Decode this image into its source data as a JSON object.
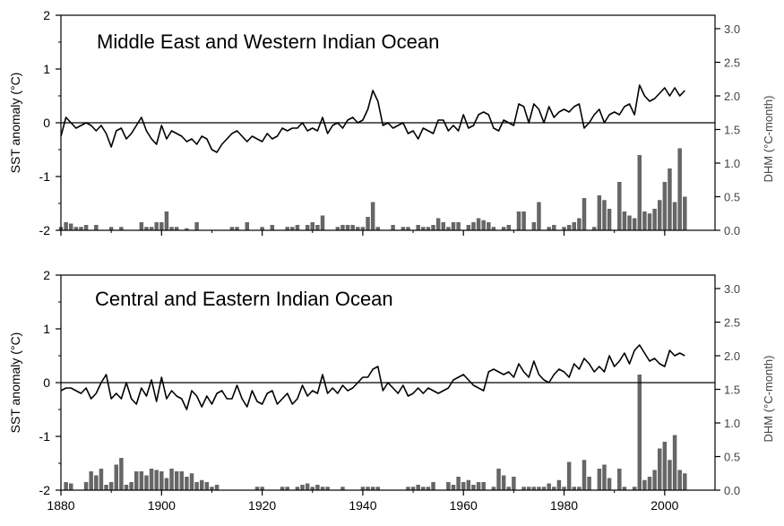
{
  "chart_data": [
    {
      "type": "bar+line",
      "title": "Middle East and Western Indian Ocean",
      "xlim": [
        1880,
        2010
      ],
      "x_ticks": [
        "1880",
        "1900",
        "1920",
        "1940",
        "1960",
        "1980",
        "2000"
      ],
      "ylabel_left": "SST anomaly (°C)",
      "ylim_left": [
        -2,
        2
      ],
      "y_ticks_left": [
        "-2",
        "-1",
        "0",
        "1",
        "2"
      ],
      "ylabel_right": "DHM (°C-month)",
      "ylim_right": [
        0.0,
        3.2
      ],
      "y_ticks_right": [
        "0.0",
        "0.5",
        "1.0",
        "1.5",
        "2.0",
        "2.5",
        "3.0"
      ],
      "zero_line": true,
      "grid": false,
      "colors": {
        "line": "#000000",
        "bars": "#666666",
        "axis": "#000000"
      },
      "series": [
        {
          "kind": "line",
          "axis": "left",
          "x_start": 1880,
          "x_step": 1,
          "values": [
            -0.25,
            0.1,
            0.0,
            -0.1,
            -0.05,
            0.0,
            -0.05,
            -0.15,
            -0.05,
            -0.2,
            -0.45,
            -0.15,
            -0.1,
            -0.3,
            -0.2,
            -0.05,
            0.1,
            -0.15,
            -0.3,
            -0.4,
            -0.05,
            -0.3,
            -0.15,
            -0.2,
            -0.25,
            -0.35,
            -0.3,
            -0.4,
            -0.25,
            -0.3,
            -0.5,
            -0.55,
            -0.4,
            -0.3,
            -0.2,
            -0.15,
            -0.25,
            -0.35,
            -0.25,
            -0.3,
            -0.35,
            -0.2,
            -0.3,
            -0.25,
            -0.1,
            -0.15,
            -0.1,
            -0.1,
            0.0,
            -0.15,
            -0.1,
            -0.15,
            0.1,
            -0.2,
            -0.05,
            0.0,
            -0.1,
            0.05,
            0.1,
            0.0,
            0.05,
            0.25,
            0.6,
            0.4,
            -0.05,
            0.0,
            -0.1,
            -0.05,
            0.0,
            -0.2,
            -0.15,
            -0.3,
            -0.1,
            -0.15,
            -0.2,
            0.05,
            0.05,
            -0.15,
            -0.05,
            -0.15,
            0.15,
            -0.1,
            -0.05,
            0.15,
            0.2,
            0.15,
            -0.1,
            -0.15,
            0.05,
            0.0,
            -0.05,
            0.35,
            0.3,
            0.0,
            0.35,
            0.25,
            0.0,
            0.3,
            0.1,
            0.2,
            0.25,
            0.2,
            0.3,
            0.35,
            -0.1,
            0.0,
            0.15,
            0.25,
            0.0,
            0.15,
            0.2,
            0.15,
            0.3,
            0.35,
            0.15,
            0.7,
            0.5,
            0.4,
            0.45,
            0.55,
            0.65,
            0.5,
            0.65,
            0.5,
            0.6
          ]
        },
        {
          "kind": "bar",
          "axis": "right",
          "x_start": 1880,
          "x_step": 1,
          "values": [
            0.05,
            0.12,
            0.1,
            0.05,
            0.05,
            0.08,
            0.0,
            0.08,
            0.0,
            0.0,
            0.05,
            0.0,
            0.05,
            0.0,
            0.0,
            0.0,
            0.12,
            0.05,
            0.05,
            0.12,
            0.12,
            0.28,
            0.05,
            0.05,
            0.0,
            0.03,
            0.0,
            0.12,
            0.0,
            0.0,
            0.0,
            0.0,
            0.0,
            0.0,
            0.05,
            0.05,
            0.0,
            0.12,
            0.0,
            0.0,
            0.05,
            0.0,
            0.08,
            0.0,
            0.0,
            0.05,
            0.05,
            0.08,
            0.0,
            0.08,
            0.12,
            0.08,
            0.22,
            0.0,
            0.0,
            0.05,
            0.08,
            0.08,
            0.08,
            0.05,
            0.05,
            0.2,
            0.42,
            0.05,
            0.0,
            0.0,
            0.08,
            0.0,
            0.05,
            0.05,
            0.0,
            0.08,
            0.05,
            0.05,
            0.08,
            0.18,
            0.12,
            0.05,
            0.12,
            0.12,
            0.0,
            0.08,
            0.12,
            0.18,
            0.15,
            0.12,
            0.05,
            0.0,
            0.05,
            0.08,
            0.0,
            0.28,
            0.28,
            0.0,
            0.12,
            0.42,
            0.0,
            0.05,
            0.08,
            0.0,
            0.05,
            0.08,
            0.12,
            0.18,
            0.48,
            0.0,
            0.05,
            0.52,
            0.45,
            0.32,
            0.0,
            0.72,
            0.28,
            0.22,
            0.18,
            1.12,
            0.28,
            0.25,
            0.32,
            0.45,
            0.72,
            0.92,
            0.42,
            1.22,
            0.5
          ]
        }
      ]
    },
    {
      "type": "bar+line",
      "title": "Central and Eastern Indian Ocean",
      "xlim": [
        1880,
        2010
      ],
      "x_ticks": [
        "1880",
        "1900",
        "1920",
        "1940",
        "1960",
        "1980",
        "2000"
      ],
      "ylabel_left": "SST anomaly (°C)",
      "ylim_left": [
        -2,
        2
      ],
      "y_ticks_left": [
        "-2",
        "-1",
        "0",
        "1",
        "2"
      ],
      "ylabel_right": "DHM (°C-month)",
      "ylim_right": [
        0.0,
        3.2
      ],
      "y_ticks_right": [
        "0.0",
        "0.5",
        "1.0",
        "1.5",
        "2.0",
        "2.5",
        "3.0"
      ],
      "zero_line": true,
      "grid": false,
      "colors": {
        "line": "#000000",
        "bars": "#666666",
        "axis": "#000000"
      },
      "series": [
        {
          "kind": "line",
          "axis": "left",
          "x_start": 1880,
          "x_step": 1,
          "values": [
            -0.15,
            -0.1,
            -0.1,
            -0.15,
            -0.2,
            -0.1,
            -0.3,
            -0.2,
            0.0,
            0.15,
            -0.3,
            -0.2,
            -0.3,
            0.0,
            -0.3,
            -0.4,
            -0.1,
            -0.25,
            0.05,
            -0.35,
            0.1,
            -0.3,
            -0.15,
            -0.25,
            -0.3,
            -0.5,
            -0.15,
            -0.25,
            -0.45,
            -0.25,
            -0.4,
            -0.2,
            -0.15,
            -0.3,
            -0.3,
            -0.05,
            -0.3,
            -0.45,
            -0.15,
            -0.35,
            -0.4,
            -0.2,
            -0.15,
            -0.4,
            -0.3,
            -0.2,
            -0.4,
            -0.3,
            -0.05,
            -0.25,
            -0.15,
            -0.2,
            0.15,
            -0.2,
            -0.1,
            -0.2,
            -0.05,
            -0.15,
            -0.1,
            0.0,
            0.1,
            0.1,
            0.25,
            0.3,
            -0.15,
            0.0,
            -0.1,
            -0.2,
            -0.05,
            -0.25,
            -0.2,
            -0.1,
            -0.2,
            -0.1,
            -0.15,
            -0.2,
            -0.15,
            -0.1,
            0.05,
            0.1,
            0.15,
            0.05,
            -0.05,
            -0.1,
            -0.15,
            0.2,
            0.25,
            0.2,
            0.15,
            0.2,
            0.1,
            0.35,
            0.2,
            0.1,
            0.4,
            0.15,
            0.05,
            0.0,
            0.15,
            0.25,
            0.2,
            0.1,
            0.35,
            0.25,
            0.45,
            0.35,
            0.2,
            0.3,
            0.2,
            0.5,
            0.3,
            0.4,
            0.55,
            0.35,
            0.6,
            0.7,
            0.55,
            0.4,
            0.45,
            0.35,
            0.3,
            0.6,
            0.5,
            0.55,
            0.5
          ]
        },
        {
          "kind": "bar",
          "axis": "right",
          "x_start": 1880,
          "x_step": 1,
          "values": [
            0.0,
            0.12,
            0.1,
            0.0,
            0.0,
            0.12,
            0.28,
            0.22,
            0.32,
            0.08,
            0.12,
            0.38,
            0.48,
            0.08,
            0.12,
            0.28,
            0.28,
            0.22,
            0.32,
            0.3,
            0.28,
            0.18,
            0.32,
            0.28,
            0.28,
            0.2,
            0.25,
            0.12,
            0.15,
            0.12,
            0.05,
            0.08,
            0.0,
            0.0,
            0.0,
            0.0,
            0.0,
            0.0,
            0.0,
            0.05,
            0.05,
            0.0,
            0.0,
            0.0,
            0.05,
            0.05,
            0.0,
            0.05,
            0.08,
            0.1,
            0.05,
            0.08,
            0.05,
            0.05,
            0.0,
            0.0,
            0.05,
            0.0,
            0.0,
            0.0,
            0.05,
            0.05,
            0.05,
            0.05,
            0.0,
            0.0,
            0.0,
            0.0,
            0.0,
            0.05,
            0.05,
            0.08,
            0.05,
            0.05,
            0.12,
            0.0,
            0.0,
            0.12,
            0.08,
            0.2,
            0.12,
            0.15,
            0.08,
            0.12,
            0.12,
            0.0,
            0.05,
            0.32,
            0.22,
            0.05,
            0.2,
            0.0,
            0.05,
            0.05,
            0.05,
            0.05,
            0.05,
            0.1,
            0.05,
            0.15,
            0.05,
            0.42,
            0.05,
            0.05,
            0.45,
            0.2,
            0.0,
            0.32,
            0.38,
            0.18,
            0.0,
            0.32,
            0.05,
            0.0,
            0.05,
            1.72,
            0.15,
            0.2,
            0.3,
            0.62,
            0.72,
            0.45,
            0.82,
            0.3,
            0.25
          ]
        }
      ]
    }
  ]
}
